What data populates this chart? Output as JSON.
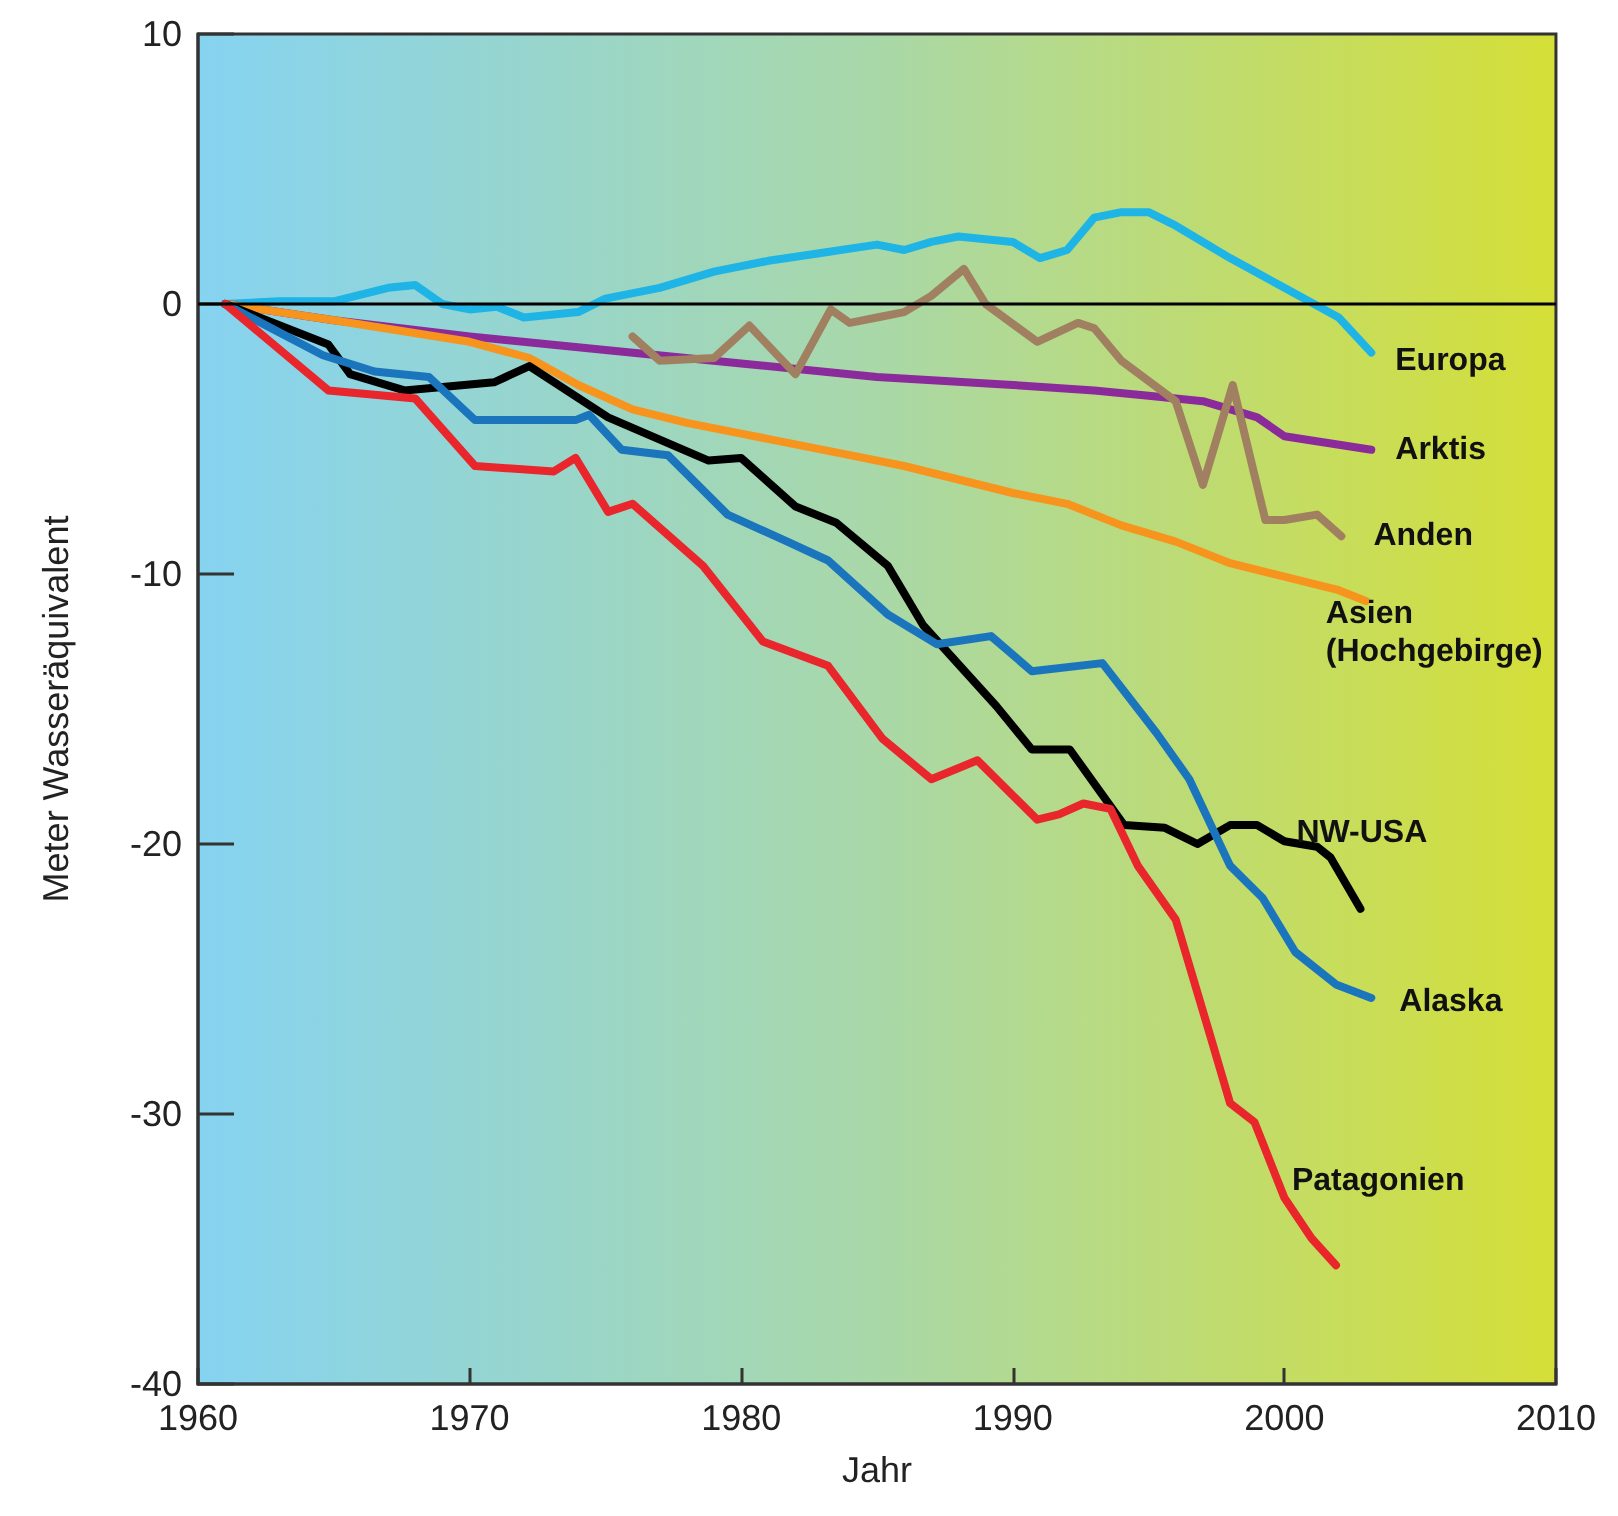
{
  "chart_data": {
    "type": "line",
    "xlabel": "Jahr",
    "ylabel": "Meter Wasseräquivalent",
    "xlim": [
      1960,
      2010
    ],
    "xticks": [
      1960,
      1970,
      1980,
      1990,
      2000,
      2010
    ],
    "ylim": [
      -40,
      10
    ],
    "yticks": [
      -40,
      -30,
      -20,
      -10,
      0,
      10
    ],
    "grid": false,
    "legend": false,
    "marker": "none",
    "line_style": "solid",
    "ref_lines": [
      {
        "axis": "y",
        "value": 0,
        "color": "#000000"
      }
    ],
    "series": [
      {
        "name": "Europa",
        "color": "#1eb4e6",
        "x": [
          1961,
          1963,
          1965,
          1967,
          1968,
          1969,
          1970,
          1971,
          1972,
          1974,
          1975,
          1977,
          1979,
          1981,
          1983,
          1985,
          1986,
          1987,
          1988,
          1990,
          1991,
          1992,
          1993,
          1994,
          1995,
          1996,
          1998,
          2000,
          2002,
          2003.2
        ],
        "values": [
          0,
          0.1,
          0.1,
          0.6,
          0.7,
          0,
          -0.2,
          -0.1,
          -0.5,
          -0.3,
          0.2,
          0.6,
          1.2,
          1.6,
          1.9,
          2.2,
          2.0,
          2.3,
          2.5,
          2.3,
          1.7,
          2.0,
          3.2,
          3.4,
          3.4,
          2.9,
          1.7,
          0.6,
          -0.5,
          -1.8
        ]
      },
      {
        "name": "Arktis",
        "color": "#8b2a9a",
        "x": [
          1961,
          1965,
          1970,
          1975,
          1980,
          1985,
          1990,
          1993,
          1995,
          1997,
          1999,
          2000,
          2003.2
        ],
        "values": [
          0,
          -0.6,
          -1.2,
          -1.7,
          -2.2,
          -2.7,
          -3.0,
          -3.2,
          -3.4,
          -3.6,
          -4.2,
          -4.9,
          -5.4
        ]
      },
      {
        "name": "Anden",
        "color": "#a08060",
        "x": [
          1976,
          1977,
          1979,
          1980.3,
          1982,
          1983.3,
          1984,
          1985,
          1986,
          1987,
          1988.2,
          1989,
          1990.9,
          1992.4,
          1993,
          1994,
          1996,
          1997,
          1998.1,
          1999.3,
          2000,
          2001.2,
          2002.1
        ],
        "values": [
          -1.2,
          -2.1,
          -2.0,
          -0.8,
          -2.6,
          -0.2,
          -0.7,
          -0.5,
          -0.3,
          0.3,
          1.3,
          0.0,
          -1.4,
          -0.7,
          -0.9,
          -2.1,
          -3.6,
          -6.7,
          -3.0,
          -8.0,
          -8.0,
          -7.8,
          -8.6
        ]
      },
      {
        "name": "Asien (Hochgebirge)",
        "color": "#f7941d",
        "x": [
          1961,
          1965,
          1970,
          1972.2,
          1974,
          1976,
          1978,
          1980,
          1982,
          1984,
          1986,
          1988,
          1990,
          1992,
          1994,
          1996,
          1998,
          2000,
          2002,
          2003
        ],
        "values": [
          0,
          -0.6,
          -1.4,
          -2.0,
          -3.0,
          -3.9,
          -4.4,
          -4.8,
          -5.2,
          -5.6,
          -6.0,
          -6.5,
          -7.0,
          -7.4,
          -8.2,
          -8.8,
          -9.6,
          -10.1,
          -10.6,
          -11.0
        ]
      },
      {
        "name": "NW-USA",
        "color": "#000000",
        "x": [
          1961,
          1964.8,
          1965.6,
          1967.6,
          1970.9,
          1972.2,
          1975.1,
          1978.8,
          1980,
          1982,
          1983.5,
          1985.4,
          1986.7,
          1989.4,
          1990.7,
          1992.1,
          1994.1,
          1995.6,
          1996.8,
          1998,
          1999,
          2000,
          2001.2,
          2001.7,
          2002.8
        ],
        "values": [
          0,
          -1.5,
          -2.6,
          -3.2,
          -2.9,
          -2.3,
          -4.2,
          -5.8,
          -5.7,
          -7.5,
          -8.1,
          -9.7,
          -11.9,
          -14.9,
          -16.5,
          -16.5,
          -19.3,
          -19.4,
          -20.0,
          -19.3,
          -19.3,
          -19.9,
          -20.1,
          -20.5,
          -22.4
        ]
      },
      {
        "name": "Alaska",
        "color": "#1a75bc",
        "x": [
          1961,
          1964.6,
          1966.5,
          1968.5,
          1970.2,
          1973.9,
          1974.4,
          1975.6,
          1977.3,
          1979.5,
          1981.7,
          1983.2,
          1985.4,
          1987.2,
          1989.2,
          1990.7,
          1993.3,
          1995.3,
          1996.5,
          1998,
          1999.2,
          2000.4,
          2001.9,
          2003.2
        ],
        "values": [
          0,
          -1.9,
          -2.5,
          -2.7,
          -4.3,
          -4.3,
          -4.1,
          -5.4,
          -5.6,
          -7.8,
          -8.8,
          -9.5,
          -11.5,
          -12.6,
          -12.3,
          -13.6,
          -13.3,
          -15.9,
          -17.6,
          -20.8,
          -22.0,
          -24.0,
          -25.2,
          -25.7
        ]
      },
      {
        "name": "Patagonien",
        "color": "#e8262b",
        "x": [
          1961,
          1964.8,
          1968,
          1970.2,
          1973.1,
          1973.9,
          1975.1,
          1976,
          1978.6,
          1980.8,
          1983.2,
          1985.2,
          1987,
          1988.7,
          1990.9,
          1991.7,
          1992.6,
          1993.6,
          1994.6,
          1996,
          1997.3,
          1998,
          1998.9,
          2000,
          2001,
          2001.9
        ],
        "values": [
          0,
          -3.2,
          -3.5,
          -6.0,
          -6.2,
          -5.7,
          -7.7,
          -7.4,
          -9.7,
          -12.5,
          -13.4,
          -16.1,
          -17.6,
          -16.9,
          -19.1,
          -18.9,
          -18.5,
          -18.7,
          -20.8,
          -22.8,
          -27.2,
          -29.6,
          -30.3,
          -33.1,
          -34.6,
          -35.6
        ]
      }
    ]
  }
}
